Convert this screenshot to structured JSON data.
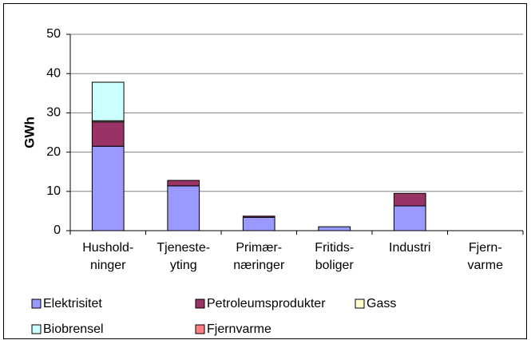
{
  "chart_data": {
    "type": "stacked_bar",
    "ylabel": "GWh",
    "categories": [
      "Hushold-\nninger",
      "Tjeneste-\nyting",
      "Primær-\nnæringer",
      "Fritids-\nboliger",
      "Industri",
      "Fjern-\nvarme"
    ],
    "series": [
      {
        "name": "Elektrisitet",
        "color": "#9999ff",
        "values": [
          21.5,
          11.4,
          3.4,
          1.0,
          6.3,
          0
        ]
      },
      {
        "name": "Petroleumsprodukter",
        "color": "#993366",
        "values": [
          6.2,
          1.4,
          0.3,
          0,
          3.2,
          0
        ]
      },
      {
        "name": "Gass",
        "color": "#ffffcc",
        "values": [
          0.3,
          0,
          0,
          0,
          0,
          0
        ]
      },
      {
        "name": "Biobrensel",
        "color": "#ccffff",
        "values": [
          9.8,
          0,
          0,
          0,
          0,
          0
        ]
      },
      {
        "name": "Fjernvarme",
        "color": "#ff8080",
        "values": [
          0,
          0,
          0,
          0,
          0,
          0
        ]
      }
    ],
    "ylim": [
      0,
      50
    ],
    "yticks": [
      0,
      10,
      20,
      30,
      40,
      50
    ],
    "grid": true
  }
}
